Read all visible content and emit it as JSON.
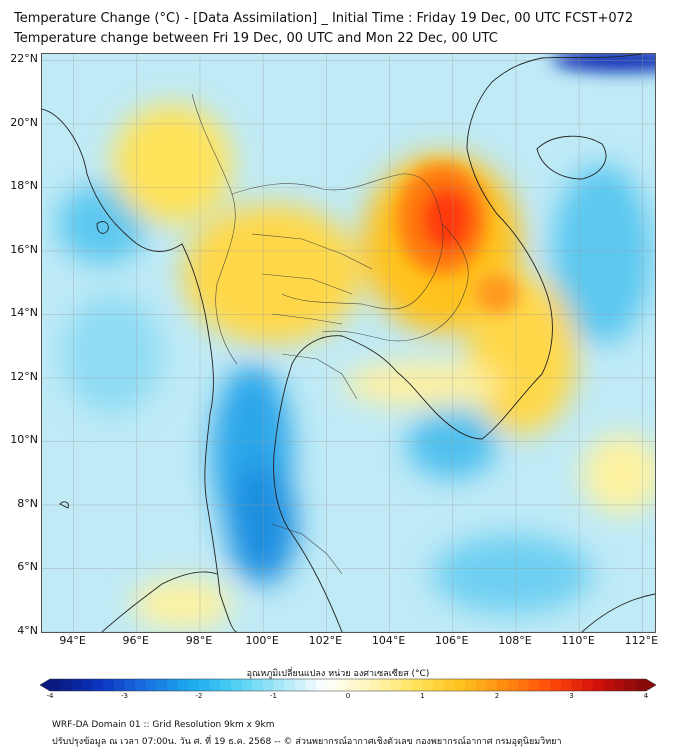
{
  "title": {
    "line1": "Temperature Change (°C) - [Data Assimilation] _ Initial Time : Friday 19 Dec, 00 UTC FCST+072",
    "line2": "Temperature change between Fri 19 Dec, 00 UTC and Mon 22 Dec, 00 UTC"
  },
  "map": {
    "lat_labels": [
      "22°N",
      "20°N",
      "18°N",
      "16°N",
      "14°N",
      "12°N",
      "10°N",
      "8°N",
      "6°N",
      "4°N"
    ],
    "lon_labels": [
      "94°E",
      "96°E",
      "98°E",
      "100°E",
      "102°E",
      "104°E",
      "106°E",
      "108°E",
      "110°E",
      "112°E"
    ],
    "lat_range": [
      4,
      22.2
    ],
    "lon_range": [
      93,
      112.4
    ],
    "grid": true,
    "background_color": "#bfeaf6",
    "anomaly_colors": {
      "warm_light": "#fff3a0",
      "warm": "#ffd84a",
      "hot": "#ff9a1f",
      "very_hot": "#ff3a0a",
      "cool": "#5cc8f0",
      "cold": "#1a8fe0",
      "very_cold": "#0a2fb5"
    }
  },
  "colorbar": {
    "title": "อุณหภูมิเปลี่ยนแปลง หน่วย องศาเซลเซียส (°C)",
    "ticks": [
      "-4",
      "-3",
      "-2",
      "-1",
      "0",
      "1",
      "2",
      "3",
      "4"
    ],
    "range": [
      -4,
      4
    ],
    "colors": [
      "#0a1a80",
      "#0a35c0",
      "#1a6fe0",
      "#1aa9ee",
      "#4fd0f4",
      "#a8e8f8",
      "#ffffff",
      "#fff6b8",
      "#ffe35a",
      "#ffc21f",
      "#ff8a10",
      "#ff4a0a",
      "#d4100a",
      "#8a0a0a"
    ]
  },
  "footer": {
    "line1": "WRF-DA Domain 01 :: Grid Resolution 9km x 9km",
    "line2": "ปรับปรุงข้อมูล ณ เวลา 07:00น. วัน ศ. ที่ 19 ธ.ค. 2568 -- © ส่วนพยากรณ์อากาศเชิงตัวเลข กองพยากรณ์อากาศ กรมอุตุนิยมวิทยา"
  }
}
